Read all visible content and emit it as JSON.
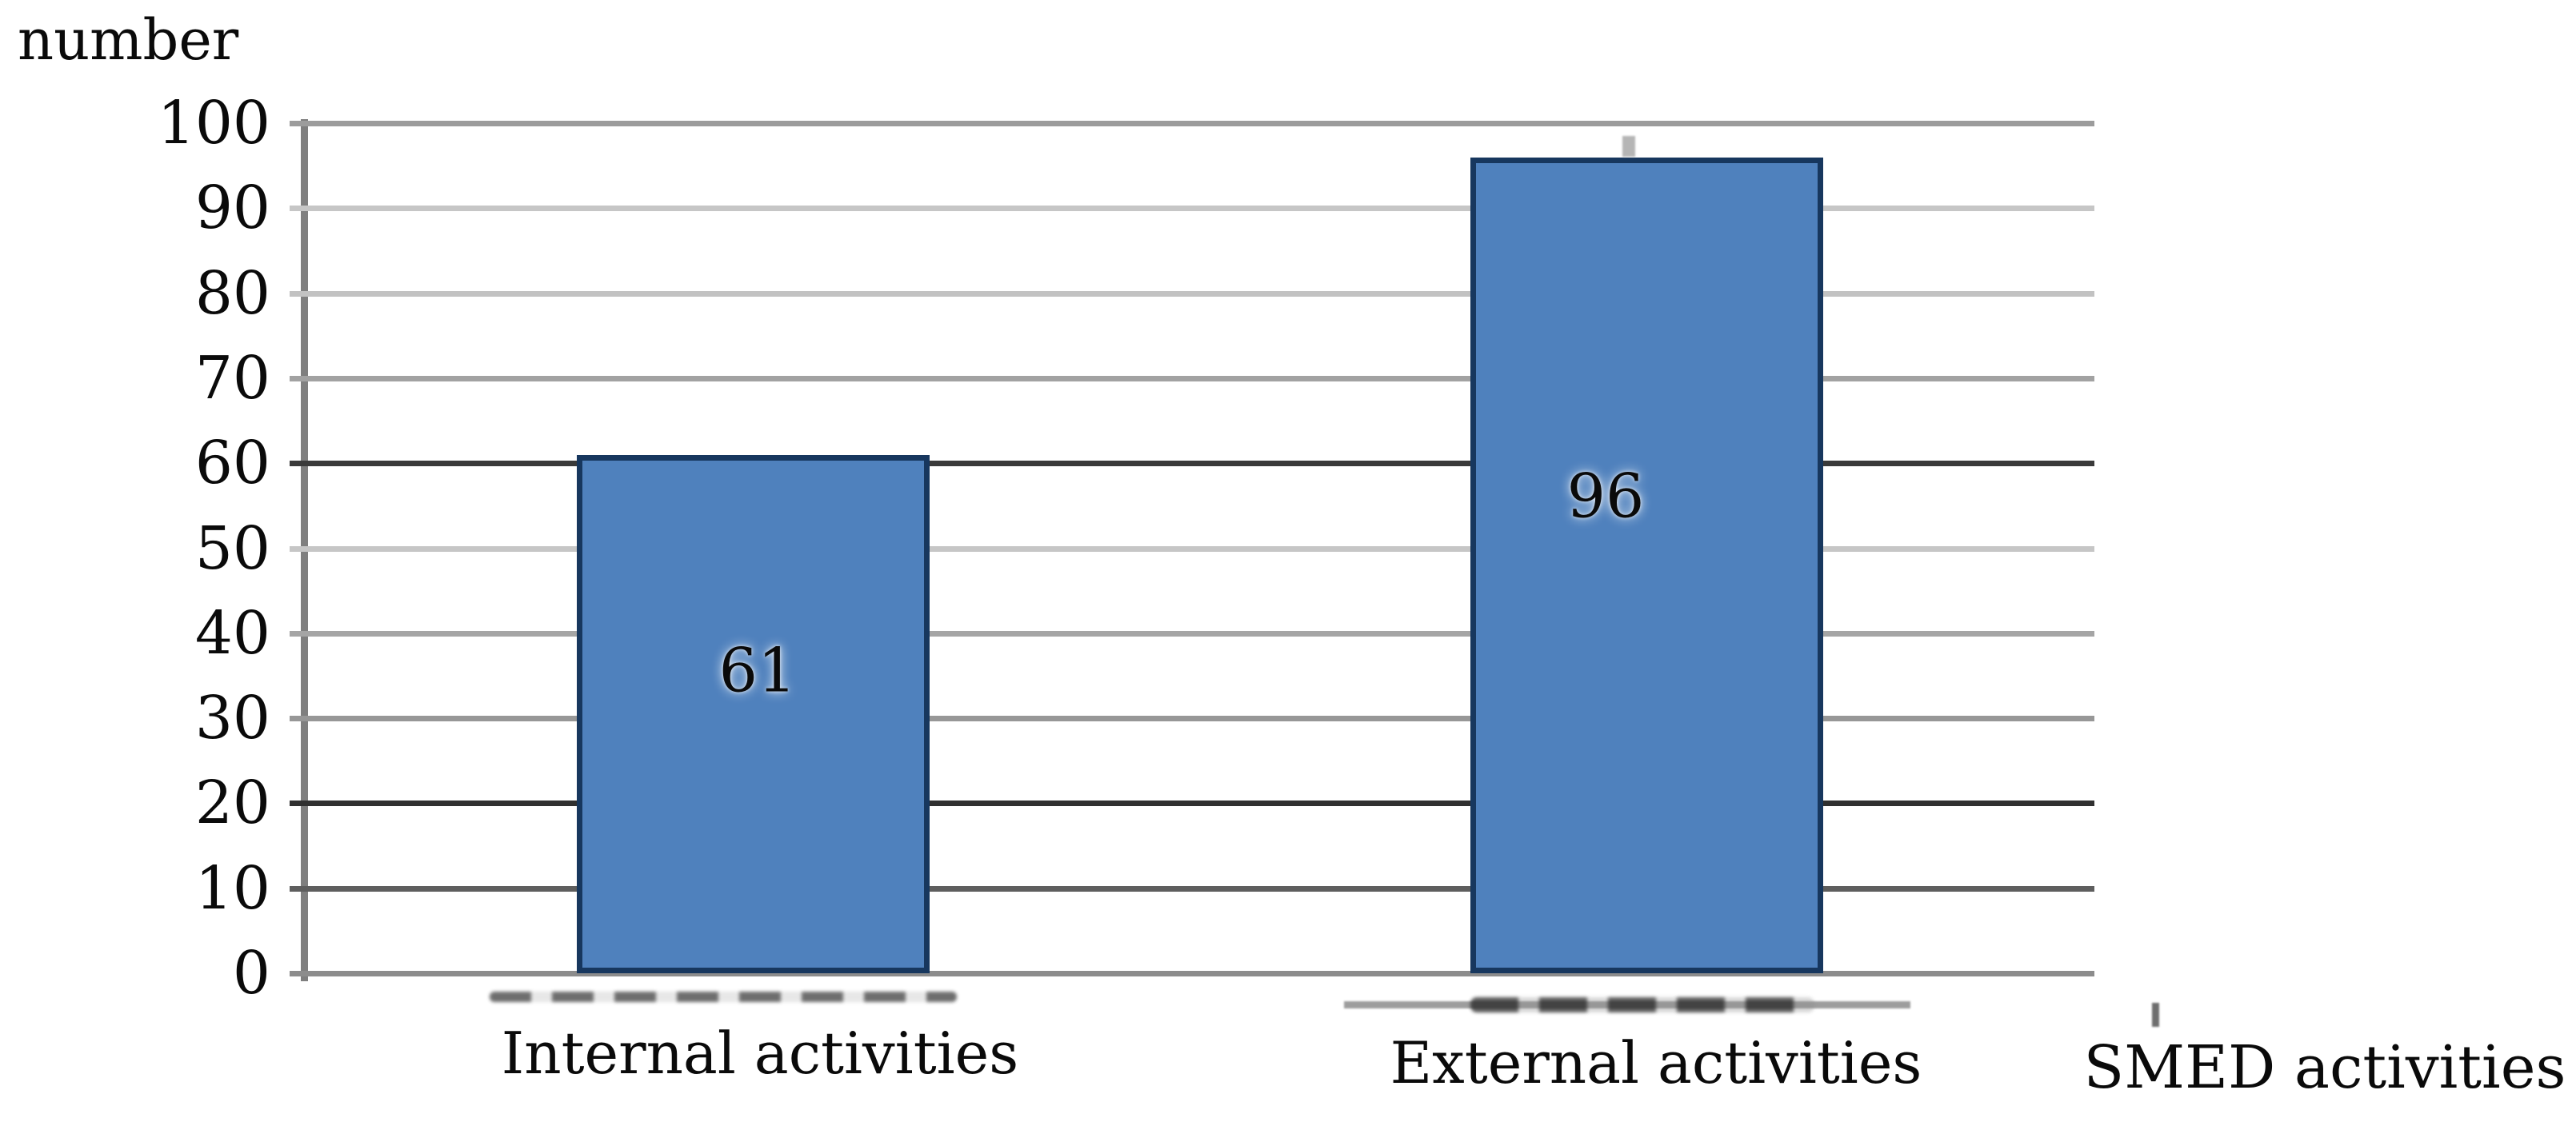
{
  "chart_data": {
    "type": "bar",
    "title": "",
    "ylabel": "number",
    "xlabel": "SMED activities",
    "categories": [
      "Internal activities",
      "External activities"
    ],
    "values": [
      61,
      96
    ],
    "bar_value_labels": [
      "61",
      "96"
    ],
    "ylim": [
      0,
      100
    ],
    "ytick_interval": 10,
    "yticks": [
      100,
      90,
      80,
      70,
      60,
      50,
      40,
      30,
      20,
      10,
      0
    ],
    "grid": "horizontal",
    "legend_position": "none",
    "colors": {
      "bar_fill": "#4f81bd",
      "bar_border": "#17375e",
      "gridline": "#9a9a9a",
      "axis_line": "#7f7f7f",
      "text": "#000000",
      "background": "#ffffff"
    }
  }
}
